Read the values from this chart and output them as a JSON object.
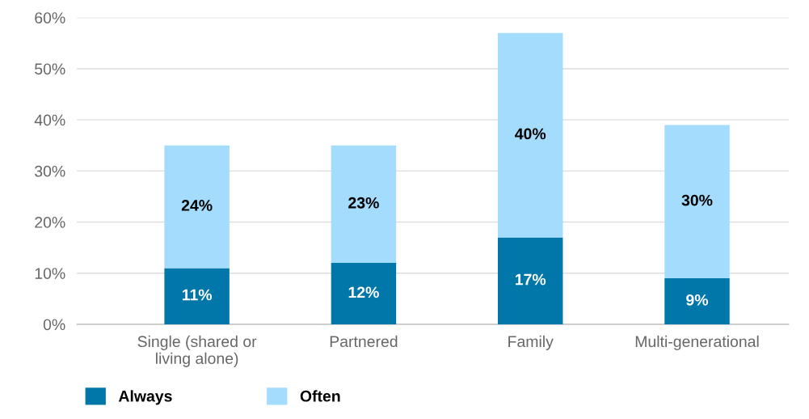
{
  "chart_data": {
    "type": "bar",
    "stacked": true,
    "categories": [
      "Single (shared or\nliving alone)",
      "Partnered",
      "Family",
      "Multi-generational"
    ],
    "series": [
      {
        "name": "Always",
        "color": "#0077a8",
        "values": [
          11,
          12,
          17,
          9
        ],
        "value_labels": [
          "11%",
          "12%",
          "17%",
          "9%"
        ]
      },
      {
        "name": "Often",
        "color": "#a3dcfc",
        "values": [
          24,
          23,
          40,
          30
        ],
        "value_labels": [
          "24%",
          "23%",
          "40%",
          "30%"
        ]
      }
    ],
    "ylim": [
      0,
      60
    ],
    "yticks": [
      {
        "value": 0,
        "label": "0%"
      },
      {
        "value": 10,
        "label": "10%"
      },
      {
        "value": 20,
        "label": "20%"
      },
      {
        "value": 30,
        "label": "30%"
      },
      {
        "value": 40,
        "label": "40%"
      },
      {
        "value": 50,
        "label": "50%"
      },
      {
        "value": 60,
        "label": "60%"
      }
    ],
    "grid": "y",
    "legend": "bottom left"
  }
}
